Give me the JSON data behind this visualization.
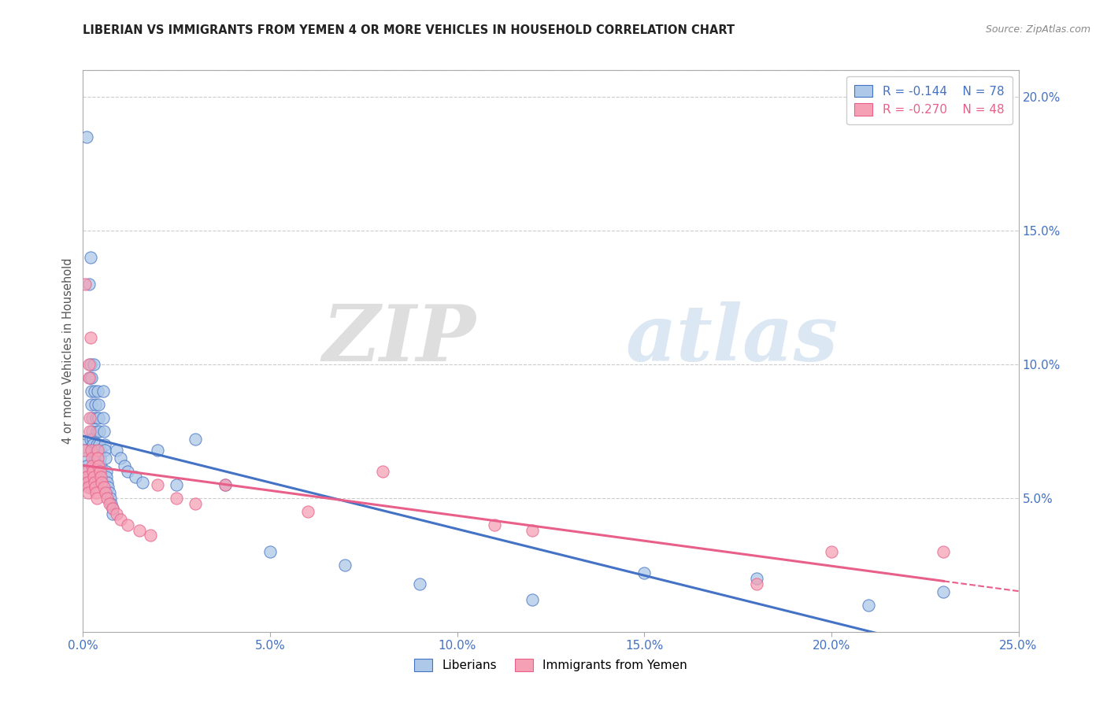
{
  "title": "LIBERIAN VS IMMIGRANTS FROM YEMEN 4 OR MORE VEHICLES IN HOUSEHOLD CORRELATION CHART",
  "source": "Source: ZipAtlas.com",
  "ylabel": "4 or more Vehicles in Household",
  "x_min": 0.0,
  "x_max": 0.25,
  "y_min": 0.0,
  "y_max": 0.21,
  "right_yticks": [
    0.0,
    0.05,
    0.1,
    0.15,
    0.2
  ],
  "right_yticklabels": [
    "",
    "5.0%",
    "10.0%",
    "15.0%",
    "20.0%"
  ],
  "liberian_R": -0.144,
  "liberian_N": 78,
  "yemen_R": -0.27,
  "yemen_N": 48,
  "liberian_color": "#adc8e8",
  "yemen_color": "#f5a0b5",
  "liberian_line_color": "#4472c4",
  "yemen_line_color": "#e8608a",
  "watermark_zip": "ZIP",
  "watermark_atlas": "atlas",
  "legend_entries": [
    "Liberians",
    "Immigrants from Yemen"
  ],
  "liberian_x": [
    0.0004,
    0.0006,
    0.0008,
    0.001,
    0.001,
    0.0012,
    0.0014,
    0.0015,
    0.0016,
    0.0017,
    0.0018,
    0.0018,
    0.0019,
    0.002,
    0.002,
    0.0021,
    0.0022,
    0.0022,
    0.0023,
    0.0024,
    0.0025,
    0.0026,
    0.0027,
    0.0028,
    0.0028,
    0.003,
    0.003,
    0.0032,
    0.0033,
    0.0034,
    0.0035,
    0.0036,
    0.0037,
    0.0038,
    0.004,
    0.0041,
    0.0042,
    0.0043,
    0.0044,
    0.0045,
    0.0046,
    0.0047,
    0.0048,
    0.005,
    0.0052,
    0.0053,
    0.0054,
    0.0055,
    0.0057,
    0.0058,
    0.006,
    0.0062,
    0.0063,
    0.0065,
    0.0067,
    0.007,
    0.0073,
    0.0075,
    0.0078,
    0.008,
    0.009,
    0.01,
    0.011,
    0.012,
    0.014,
    0.016,
    0.02,
    0.025,
    0.03,
    0.038,
    0.05,
    0.07,
    0.09,
    0.12,
    0.15,
    0.18,
    0.21,
    0.23
  ],
  "liberian_y": [
    0.07,
    0.068,
    0.065,
    0.062,
    0.185,
    0.06,
    0.058,
    0.13,
    0.058,
    0.056,
    0.095,
    0.055,
    0.054,
    0.14,
    0.072,
    0.1,
    0.095,
    0.09,
    0.085,
    0.08,
    0.075,
    0.072,
    0.07,
    0.1,
    0.068,
    0.09,
    0.065,
    0.085,
    0.068,
    0.065,
    0.08,
    0.075,
    0.07,
    0.068,
    0.09,
    0.085,
    0.08,
    0.075,
    0.07,
    0.068,
    0.065,
    0.062,
    0.06,
    0.058,
    0.056,
    0.09,
    0.08,
    0.075,
    0.07,
    0.068,
    0.065,
    0.06,
    0.058,
    0.056,
    0.054,
    0.052,
    0.05,
    0.048,
    0.046,
    0.044,
    0.068,
    0.065,
    0.062,
    0.06,
    0.058,
    0.056,
    0.068,
    0.055,
    0.072,
    0.055,
    0.03,
    0.025,
    0.018,
    0.012,
    0.022,
    0.02,
    0.01,
    0.015
  ],
  "yemen_x": [
    0.0004,
    0.0006,
    0.0008,
    0.001,
    0.0012,
    0.0013,
    0.0014,
    0.0015,
    0.0016,
    0.0017,
    0.0018,
    0.002,
    0.0022,
    0.0024,
    0.0025,
    0.0026,
    0.0028,
    0.003,
    0.0032,
    0.0034,
    0.0036,
    0.0038,
    0.004,
    0.0042,
    0.0045,
    0.0048,
    0.005,
    0.0055,
    0.006,
    0.0065,
    0.007,
    0.008,
    0.009,
    0.01,
    0.012,
    0.015,
    0.018,
    0.02,
    0.025,
    0.03,
    0.038,
    0.06,
    0.08,
    0.11,
    0.12,
    0.18,
    0.2,
    0.23
  ],
  "yemen_y": [
    0.068,
    0.13,
    0.06,
    0.058,
    0.056,
    0.054,
    0.052,
    0.1,
    0.095,
    0.08,
    0.075,
    0.11,
    0.068,
    0.065,
    0.062,
    0.06,
    0.058,
    0.056,
    0.054,
    0.052,
    0.05,
    0.068,
    0.065,
    0.062,
    0.06,
    0.058,
    0.056,
    0.054,
    0.052,
    0.05,
    0.048,
    0.046,
    0.044,
    0.042,
    0.04,
    0.038,
    0.036,
    0.055,
    0.05,
    0.048,
    0.055,
    0.045,
    0.06,
    0.04,
    0.038,
    0.018,
    0.03,
    0.03
  ]
}
